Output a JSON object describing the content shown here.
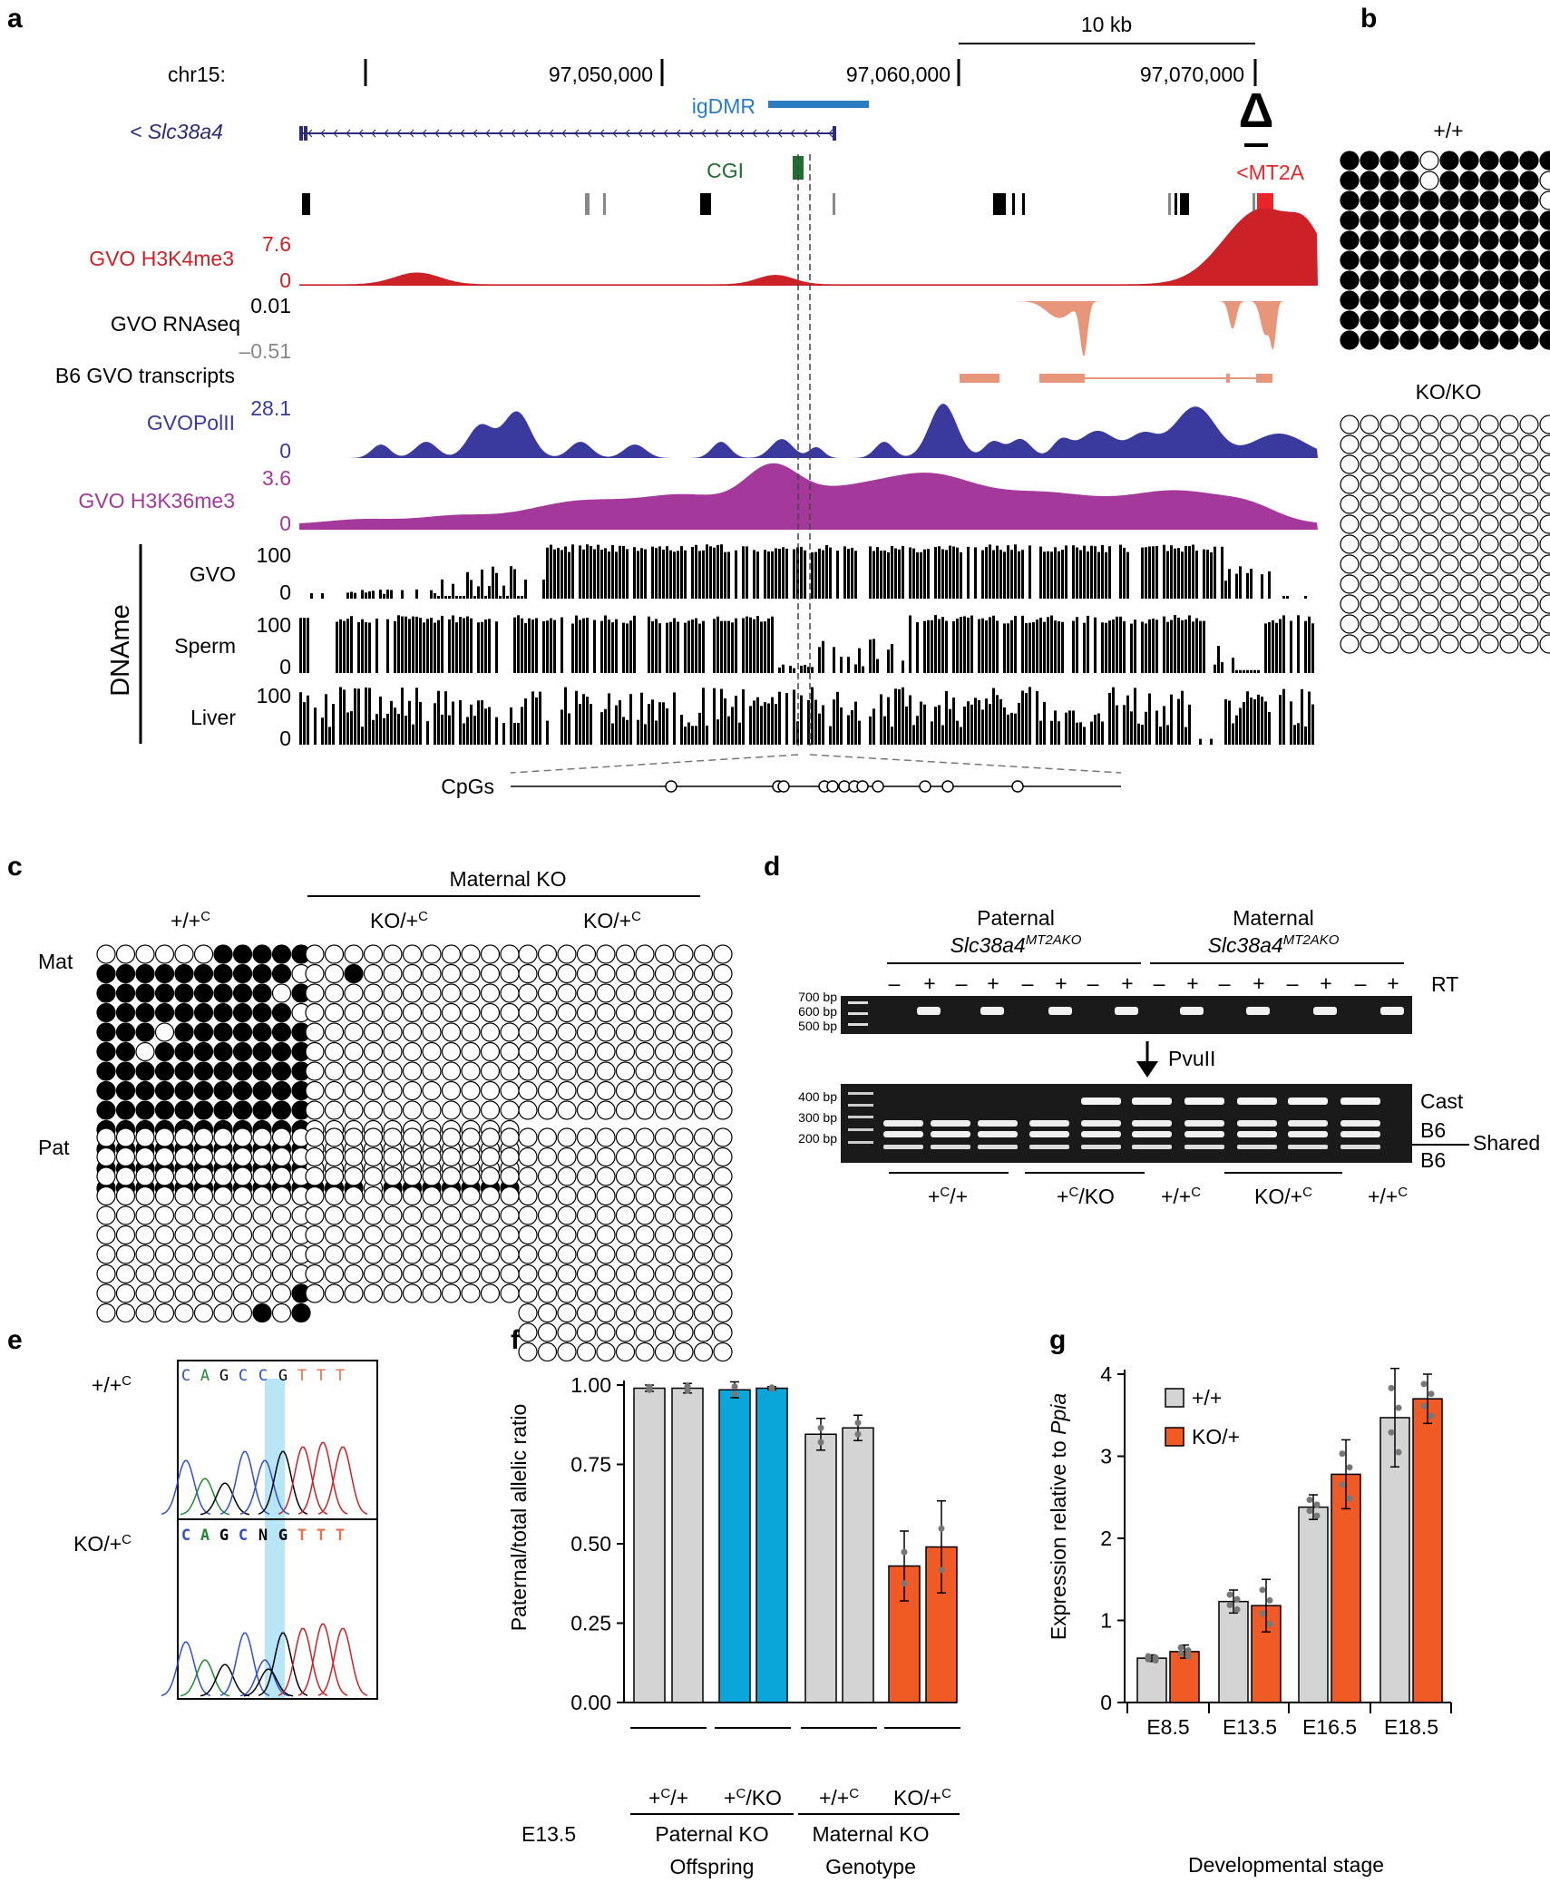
{
  "panels": {
    "a": "a",
    "b": "b",
    "c": "c",
    "d": "d",
    "e": "e",
    "f": "f",
    "g": "g"
  },
  "colors": {
    "h3k4": "#cc2127",
    "rna": "#e8967a",
    "pol": "#3a3a9e",
    "h3k36": "#a4399b",
    "igdmr": "#2a7dc1",
    "cgi": "#1f6e2f",
    "mt2a": "#e8262a",
    "wt": "#d4d4d4",
    "pat_ko": "#0aa6d9",
    "mat_ko": "#f05a24",
    "highlight": "#b8e6f7"
  },
  "panel_a": {
    "chrom": "chr15:",
    "coords": [
      "97,050,000",
      "97,060,000",
      "97,070,000"
    ],
    "scale": "10 kb",
    "gene": "< Slc38a4",
    "igdmr": "igDMR",
    "cgi": "CGI",
    "mt2a": "<MT2A",
    "delta": "Δ",
    "tracks": {
      "h3k4": {
        "label": "GVO H3K4me3",
        "max": "7.6",
        "min": "0"
      },
      "rnaseq": {
        "label": "GVO RNAseq",
        "max": "0.01",
        "min": "–0.51"
      },
      "transcripts": {
        "label": "B6 GVO transcripts"
      },
      "pol": {
        "label": "GVOPolII",
        "max": "28.1",
        "min": "0"
      },
      "h3k36": {
        "label": "GVO H3K36me3",
        "max": "3.6",
        "min": "0"
      }
    },
    "dname": {
      "title": "DNAme",
      "rows": [
        {
          "label": "GVO",
          "max": "100",
          "min": "0"
        },
        {
          "label": "Sperm",
          "max": "100",
          "min": "0"
        },
        {
          "label": "Liver",
          "max": "100",
          "min": "0"
        }
      ]
    },
    "cpgs": "CpGs"
  },
  "panel_b": {
    "wt": "+/+",
    "ko": "KO/KO"
  },
  "panel_c": {
    "maternal_ko": "Maternal KO",
    "col1": "+/+",
    "col1_sup": "C",
    "col2": "KO/+",
    "col2_sup": "C",
    "col3": "KO/+",
    "col3_sup": "C",
    "row_mat": "Mat",
    "row_pat": "Pat"
  },
  "panel_d": {
    "paternal": "Paternal",
    "maternal": "Maternal",
    "allele": "Slc38a4",
    "allele_sup": "MT2AKO",
    "rt": "RT",
    "rt_signs": [
      "–",
      "+",
      "–",
      "+",
      "–",
      "+",
      "–",
      "+",
      "–",
      "+",
      "–",
      "+",
      "–",
      "+",
      "–",
      "+"
    ],
    "ladder_top": [
      "700 bp",
      "600 bp",
      "500 bp"
    ],
    "ladder_bottom": [
      "400 bp",
      "300 bp",
      "200 bp"
    ],
    "enzyme": "PvuII",
    "bands": [
      "Cast",
      "B6",
      "Shared",
      "B6"
    ],
    "groups": [
      {
        "base": "+",
        "sup": "C",
        "rest": "/+"
      },
      {
        "base": "+",
        "sup": "C",
        "rest": "/KO"
      },
      {
        "base": "+/+",
        "sup": "C",
        "rest": ""
      },
      {
        "base": "KO/+",
        "sup": "C",
        "rest": ""
      },
      {
        "base": "+/+",
        "sup": "C",
        "rest": ""
      }
    ]
  },
  "panel_e": {
    "seq": [
      "C",
      "A",
      "G",
      "C",
      "C",
      "G",
      "T",
      "T",
      "T"
    ],
    "seq_ko": [
      "C",
      "A",
      "G",
      "C",
      "N",
      "G",
      "T",
      "T",
      "T"
    ],
    "wt": "+/+",
    "wt_sup": "C",
    "ko": "KO/+",
    "ko_sup": "C"
  },
  "chart_data": [
    {
      "type": "bar",
      "panel": "f",
      "ylabel": "Paternal/total allelic ratio",
      "ylim": [
        0,
        1
      ],
      "yticks": [
        "0.00",
        "0.25",
        "0.50",
        "0.75",
        "1.00"
      ],
      "stage": "E13.5",
      "bars": [
        {
          "value": 0.99,
          "err": 0.01,
          "group": "+C/+",
          "color": "wt"
        },
        {
          "value": 0.99,
          "err": 0.015,
          "group": "+C/+",
          "color": "wt"
        },
        {
          "value": 0.985,
          "err": 0.025,
          "group": "+C/KO",
          "color": "pat_ko"
        },
        {
          "value": 0.99,
          "err": 0.005,
          "group": "+C/KO",
          "color": "pat_ko"
        },
        {
          "value": 0.845,
          "err": 0.05,
          "group": "+/+C",
          "color": "wt"
        },
        {
          "value": 0.865,
          "err": 0.04,
          "group": "+/+C",
          "color": "wt"
        },
        {
          "value": 0.43,
          "err": 0.11,
          "group": "KO/+C",
          "color": "mat_ko"
        },
        {
          "value": 0.49,
          "err": 0.145,
          "group": "KO/+C",
          "color": "mat_ko"
        }
      ],
      "genotypes": [
        {
          "base": "+",
          "sup": "C",
          "rest": "/+"
        },
        {
          "base": "+",
          "sup": "C",
          "rest": "/KO"
        },
        {
          "base": "+/+",
          "sup": "C",
          "rest": ""
        },
        {
          "base": "KO/+",
          "sup": "C",
          "rest": ""
        }
      ],
      "offspring_groups": [
        "Paternal KO",
        "Maternal KO"
      ],
      "footer": [
        "Offspring",
        "Genotype"
      ]
    },
    {
      "type": "bar",
      "panel": "g",
      "ylabel": "Expression relative to",
      "ylabel_italic": "Ppia",
      "ylim": [
        0,
        4
      ],
      "yticks": [
        "0",
        "1",
        "2",
        "3",
        "4"
      ],
      "categories": [
        "E8.5",
        "E13.5",
        "E16.5",
        "E18.5"
      ],
      "xlabel": "Developmental stage",
      "series": [
        {
          "name": "+/+",
          "color": "wt",
          "values": [
            0.54,
            1.23,
            2.38,
            3.47
          ],
          "err": [
            0.04,
            0.14,
            0.15,
            0.6
          ]
        },
        {
          "name": "KO/+",
          "color": "mat_ko",
          "values": [
            0.62,
            1.18,
            2.78,
            3.7
          ],
          "err": [
            0.08,
            0.32,
            0.42,
            0.3
          ]
        }
      ],
      "legend": "top-left"
    }
  ]
}
